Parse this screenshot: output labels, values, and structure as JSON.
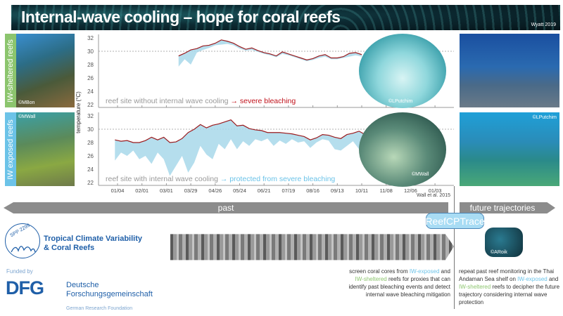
{
  "header": {
    "title": "Internal-wave cooling – hope for coral reefs",
    "credit": "Wyatt 2019"
  },
  "side_labels": {
    "sheltered": "IW-sheltered reefs",
    "exposed": "IW exposed reefs"
  },
  "photo_credits": {
    "left_top": "©MBon",
    "left_bottom": "©MWall",
    "circle_top": "©LPutchim",
    "circle_bottom": "©MWall",
    "right_bottom": "©LPutchim",
    "monitoring": "©ARoik"
  },
  "chart_data": {
    "type": "line",
    "ylabel": "temperature (°C)",
    "ylim": [
      22,
      32
    ],
    "yticks": [
      "22",
      "24",
      "26",
      "28",
      "30",
      "32"
    ],
    "threshold": 30,
    "xticks": [
      "01/04",
      "02/01",
      "03/01",
      "03/29",
      "04/26",
      "05/24",
      "06/21",
      "07/19",
      "08/16",
      "09/13",
      "10/11",
      "11/08",
      "12/06",
      "01/03"
    ],
    "source": "Wall et al. 2015",
    "panels": [
      {
        "name": "without-cooling",
        "caption": "reef site without internal wave cooling",
        "arrow": "→",
        "outcome": "severe bleaching",
        "outcome_color": "#c0121b",
        "x": [
          "03/15",
          "03/22",
          "03/29",
          "04/05",
          "04/12",
          "04/19",
          "04/26",
          "05/03",
          "05/10",
          "05/17",
          "05/24",
          "05/31",
          "06/07",
          "06/14",
          "06/21",
          "06/28",
          "07/05",
          "07/12",
          "07/19",
          "07/26",
          "08/02",
          "08/09",
          "08/16",
          "08/23",
          "08/30",
          "09/06",
          "09/13",
          "09/20",
          "09/27",
          "10/04",
          "10/11"
        ],
        "mean": [
          29.3,
          29.7,
          30.2,
          30.4,
          30.8,
          30.9,
          31.2,
          31.7,
          31.5,
          31.2,
          30.7,
          30.3,
          30.5,
          30.1,
          29.8,
          29.6,
          29.3,
          29.9,
          29.6,
          29.3,
          29.0,
          28.7,
          28.9,
          29.3,
          29.5,
          29.0,
          29.0,
          29.2,
          29.7,
          29.8,
          29.5
        ],
        "min": [
          27.7,
          28.8,
          28.0,
          29.8,
          30.2,
          30.5,
          30.9,
          31.0,
          31.1,
          30.9,
          30.4,
          30.1,
          30.2,
          29.9,
          29.6,
          29.4,
          29.1,
          29.6,
          29.4,
          29.1,
          28.8,
          28.5,
          28.7,
          29.0,
          29.2,
          28.8,
          28.8,
          29.0,
          29.2,
          29.4,
          29.2
        ]
      },
      {
        "name": "with-cooling",
        "caption": "reef site with internal wave cooling",
        "arrow": "→",
        "outcome": "protected from severe bleaching",
        "outcome_color": "#6cc3e8",
        "x": [
          "01/01",
          "01/08",
          "01/15",
          "01/22",
          "01/29",
          "02/05",
          "02/12",
          "02/19",
          "02/26",
          "03/05",
          "03/12",
          "03/19",
          "03/26",
          "04/02",
          "04/09",
          "04/16",
          "04/23",
          "04/30",
          "05/07",
          "05/14",
          "05/21",
          "05/28",
          "06/04",
          "06/11",
          "06/18",
          "06/25",
          "07/02",
          "07/09",
          "07/16",
          "07/23",
          "07/30",
          "08/06",
          "08/13",
          "08/20",
          "08/27",
          "09/03",
          "09/10",
          "09/17",
          "09/24",
          "10/01",
          "10/08",
          "10/15"
        ],
        "mean": [
          28.4,
          28.2,
          28.3,
          28.0,
          28.0,
          28.3,
          28.8,
          28.4,
          28.8,
          28.0,
          28.1,
          28.6,
          29.5,
          30.0,
          30.7,
          30.2,
          30.6,
          30.8,
          31.1,
          31.4,
          30.5,
          30.6,
          30.1,
          29.9,
          29.8,
          29.5,
          29.5,
          29.5,
          29.4,
          29.3,
          29.1,
          28.9,
          28.4,
          28.7,
          29.2,
          29.1,
          28.8,
          28.6,
          29.2,
          29.4,
          29.7,
          29.2
        ],
        "min": [
          25.3,
          26.5,
          26.0,
          26.8,
          25.5,
          26.0,
          24.8,
          26.5,
          25.5,
          23.0,
          24.5,
          26.0,
          23.5,
          25.0,
          27.5,
          26.2,
          25.5,
          27.8,
          27.0,
          28.5,
          27.0,
          28.2,
          27.5,
          28.5,
          28.2,
          28.6,
          27.5,
          28.3,
          27.8,
          28.5,
          28.0,
          28.2,
          27.2,
          28.0,
          28.5,
          28.3,
          27.0,
          26.8,
          27.5,
          28.2,
          27.0,
          28.5
        ]
      }
    ]
  },
  "timeline": {
    "past": "past",
    "future": "future trajectories"
  },
  "project_button": "ReefCPTrace",
  "core_text": {
    "p1": "screen coral cores from ",
    "exposed": "IW-exposed",
    "p2": " and ",
    "sheltered": "IW-sheltered",
    "p3": " reefs for proxies that can identify past bleaching events and detect internal wave bleaching mitigation"
  },
  "future_text": {
    "p1": "repeat past reef monitoring in the Thai Andaman Sea shelf on ",
    "exposed": "IW-exposed",
    "p2": " and ",
    "sheltered": "IW-sheltered",
    "p3": " reefs to decipher the future trajectory considering internal wave protection"
  },
  "logos": {
    "spp": "SPP 2299",
    "program_line1": "Tropical Climate Variability",
    "program_line2": "& Coral Reefs",
    "funded_by": "Funded by",
    "dfg": "DFG",
    "dfg_line1": "Deutsche",
    "dfg_line2": "Forschungsgemeinschaft",
    "dfg_en": "German Research Foundation"
  },
  "colors": {
    "mean_line": "#9b1b1e",
    "range_fill": "#a8d8ea",
    "sheltered": "#8cc56e",
    "exposed": "#6cc3e8",
    "dfg_blue": "#1f5fa8"
  }
}
